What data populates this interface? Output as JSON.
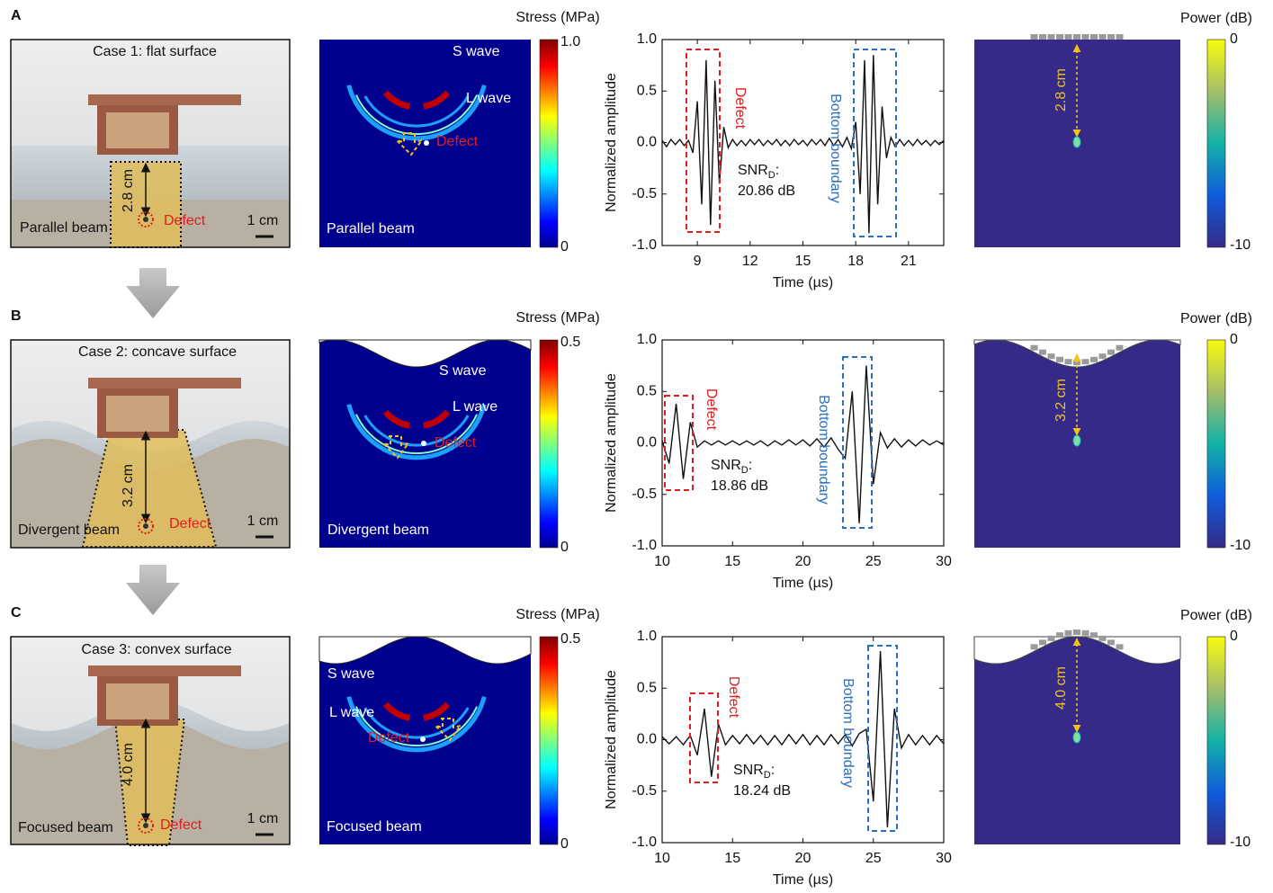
{
  "panels": [
    {
      "letter": "A",
      "photo": {
        "title": "Case 1: flat surface",
        "beam": "Parallel beam",
        "defect": "Defect",
        "scale": "1 cm",
        "distance": "2.8 cm"
      },
      "stress_map": {
        "s_wave": "S wave",
        "l_wave": "L wave",
        "defect": "Defect",
        "beam": "Parallel beam",
        "colorbar_title": "Stress (MPa)",
        "colorbar_max": "1.0",
        "colorbar_min": "0"
      },
      "power_map": {
        "distance": "2.8 cm",
        "colorbar_title": "Power (dB)",
        "colorbar_max": "0",
        "colorbar_min": "-10"
      }
    },
    {
      "letter": "B",
      "photo": {
        "title": "Case 2: concave surface",
        "beam": "Divergent beam",
        "defect": "Defect",
        "scale": "1 cm",
        "distance": "3.2 cm"
      },
      "stress_map": {
        "s_wave": "S wave",
        "l_wave": "L wave",
        "defect": "Defect",
        "beam": "Divergent beam",
        "colorbar_title": "Stress (MPa)",
        "colorbar_max": "0.5",
        "colorbar_min": "0"
      },
      "power_map": {
        "distance": "3.2 cm",
        "colorbar_title": "Power (dB)",
        "colorbar_max": "0",
        "colorbar_min": "-10"
      }
    },
    {
      "letter": "C",
      "photo": {
        "title": "Case 3: convex surface",
        "beam": "Focused beam",
        "defect": "Defect",
        "scale": "1 cm",
        "distance": "4.0 cm"
      },
      "stress_map": {
        "s_wave": "S wave",
        "l_wave": "L wave",
        "defect": "Defect",
        "beam": "Focused beam",
        "colorbar_title": "Stress (MPa)",
        "colorbar_max": "0.5",
        "colorbar_min": "0"
      },
      "power_map": {
        "distance": "4.0 cm",
        "colorbar_title": "Power (dB)",
        "colorbar_max": "0",
        "colorbar_min": "-10"
      }
    }
  ],
  "chart_data": [
    {
      "type": "line",
      "x_label": "Time (µs)",
      "y_label": "Normalized amplitude",
      "color": "#111111",
      "xlim": [
        7,
        23
      ],
      "xticks": [
        9,
        12,
        15,
        18,
        21
      ],
      "ylim": [
        -1,
        1
      ],
      "yticks": [
        {
          "value": -1,
          "label": "-1.0"
        },
        {
          "value": -0.5,
          "label": "-0.5"
        },
        {
          "value": 0,
          "label": "0.0"
        },
        {
          "value": 0.5,
          "label": "0.5"
        },
        {
          "value": 1,
          "label": "1.0"
        }
      ],
      "x": [
        7,
        7.25,
        7.5,
        7.75,
        8,
        8.25,
        8.5,
        8.75,
        9,
        9.25,
        9.5,
        9.75,
        10,
        10.25,
        10.5,
        10.75,
        11,
        11.25,
        11.5,
        11.75,
        12,
        12.25,
        12.5,
        12.75,
        13,
        13.25,
        13.5,
        13.75,
        14,
        14.25,
        14.5,
        14.75,
        15,
        15.25,
        15.5,
        15.75,
        16,
        16.25,
        16.5,
        16.75,
        17,
        17.25,
        17.5,
        17.75,
        18,
        18.25,
        18.5,
        18.75,
        19,
        19.25,
        19.5,
        19.75,
        20,
        20.25,
        20.5,
        20.75,
        21,
        21.25,
        21.5,
        21.75,
        22,
        22.25,
        22.5,
        22.75,
        23
      ],
      "values": [
        0.02,
        -0.04,
        0.03,
        -0.02,
        0.03,
        -0.03,
        0.02,
        -0.1,
        0.4,
        -0.6,
        0.8,
        -0.8,
        0.6,
        -0.4,
        0.15,
        -0.05,
        0.03,
        -0.03,
        0.02,
        -0.03,
        0.03,
        -0.02,
        0.03,
        -0.03,
        0.02,
        -0.02,
        0.03,
        -0.03,
        0.02,
        -0.03,
        0.03,
        -0.02,
        0.02,
        -0.03,
        0.03,
        -0.02,
        0.03,
        -0.03,
        0.04,
        -0.03,
        0.03,
        -0.04,
        0.05,
        -0.06,
        0.2,
        -0.5,
        0.8,
        -0.88,
        0.85,
        -0.6,
        0.35,
        -0.15,
        0.05,
        -0.04,
        0.03,
        -0.03,
        0.02,
        -0.03,
        0.03,
        -0.02,
        0.02,
        -0.03,
        0.02,
        -0.02,
        0.02
      ],
      "annotations": {
        "defect": "Defect",
        "boundary": "Bottom boundary",
        "snr": "SNR",
        "snr_sub": "D",
        "snr_colon": ":",
        "snr_value": "20.86 dB"
      }
    },
    {
      "type": "line",
      "x_label": "Time (µs)",
      "y_label": "Normalized amplitude",
      "color": "#111111",
      "xlim": [
        10,
        30
      ],
      "xticks": [
        10,
        15,
        20,
        25,
        30
      ],
      "ylim": [
        -1,
        1
      ],
      "yticks": [
        {
          "value": -1,
          "label": "-1.0"
        },
        {
          "value": -0.5,
          "label": "-0.5"
        },
        {
          "value": 0,
          "label": "0.0"
        },
        {
          "value": 0.5,
          "label": "0.5"
        },
        {
          "value": 1,
          "label": "1.0"
        }
      ],
      "x": [
        10,
        10.5,
        11,
        11.5,
        12,
        12.5,
        13,
        13.5,
        14,
        14.5,
        15,
        15.5,
        16,
        16.5,
        17,
        17.5,
        18,
        18.5,
        19,
        19.5,
        20,
        20.5,
        21,
        21.5,
        22,
        22.5,
        23,
        23.5,
        24,
        24.5,
        25,
        25.5,
        26,
        26.5,
        27,
        27.5,
        28,
        28.5,
        29,
        29.5,
        30
      ],
      "values": [
        0.02,
        -0.2,
        0.38,
        -0.35,
        0.2,
        -0.04,
        0.02,
        -0.02,
        0.02,
        -0.02,
        0.02,
        -0.02,
        0.02,
        -0.02,
        0.02,
        -0.03,
        0.02,
        -0.02,
        0.03,
        -0.02,
        0.03,
        -0.03,
        0.04,
        -0.04,
        0.05,
        -0.06,
        -0.15,
        0.5,
        -0.78,
        0.75,
        -0.4,
        0.1,
        -0.05,
        0.04,
        -0.04,
        0.03,
        -0.03,
        0.03,
        -0.02,
        0.02,
        -0.02
      ],
      "annotations": {
        "defect": "Defect",
        "boundary": "Bottom boundary",
        "snr": "SNR",
        "snr_sub": "D",
        "snr_colon": ":",
        "snr_value": "18.86 dB"
      }
    },
    {
      "type": "line",
      "x_label": "Time (µs)",
      "y_label": "Normalized amplitude",
      "color": "#111111",
      "xlim": [
        10,
        30
      ],
      "xticks": [
        10,
        15,
        20,
        25,
        30
      ],
      "ylim": [
        -1,
        1
      ],
      "yticks": [
        {
          "value": -1,
          "label": "-1.0"
        },
        {
          "value": -0.5,
          "label": "-0.5"
        },
        {
          "value": 0,
          "label": "0.0"
        },
        {
          "value": 0.5,
          "label": "0.5"
        },
        {
          "value": 1,
          "label": "1.0"
        }
      ],
      "x": [
        10,
        10.5,
        11,
        11.5,
        12,
        12.5,
        13,
        13.5,
        14,
        14.5,
        15,
        15.5,
        16,
        16.5,
        17,
        17.5,
        18,
        18.5,
        19,
        19.5,
        20,
        20.5,
        21,
        21.5,
        22,
        22.5,
        23,
        23.5,
        24,
        24.5,
        25,
        25.5,
        26,
        26.5,
        27,
        27.5,
        28,
        28.5,
        29,
        29.5,
        30
      ],
      "values": [
        0.03,
        -0.04,
        0.03,
        -0.05,
        0.04,
        -0.15,
        0.3,
        -0.36,
        0.15,
        -0.05,
        0.04,
        -0.04,
        0.05,
        -0.04,
        0.04,
        -0.05,
        0.04,
        -0.05,
        0.05,
        -0.04,
        0.05,
        -0.05,
        0.04,
        -0.05,
        0.05,
        -0.04,
        0.05,
        -0.06,
        0.06,
        0.1,
        -0.6,
        0.86,
        -0.85,
        0.3,
        -0.08,
        0.05,
        -0.05,
        0.04,
        -0.05,
        0.04,
        -0.04
      ],
      "annotations": {
        "defect": "Defect",
        "boundary": "Bottom boundary",
        "snr": "SNR",
        "snr_sub": "D",
        "snr_colon": ":",
        "snr_value": "18.24 dB"
      }
    }
  ]
}
